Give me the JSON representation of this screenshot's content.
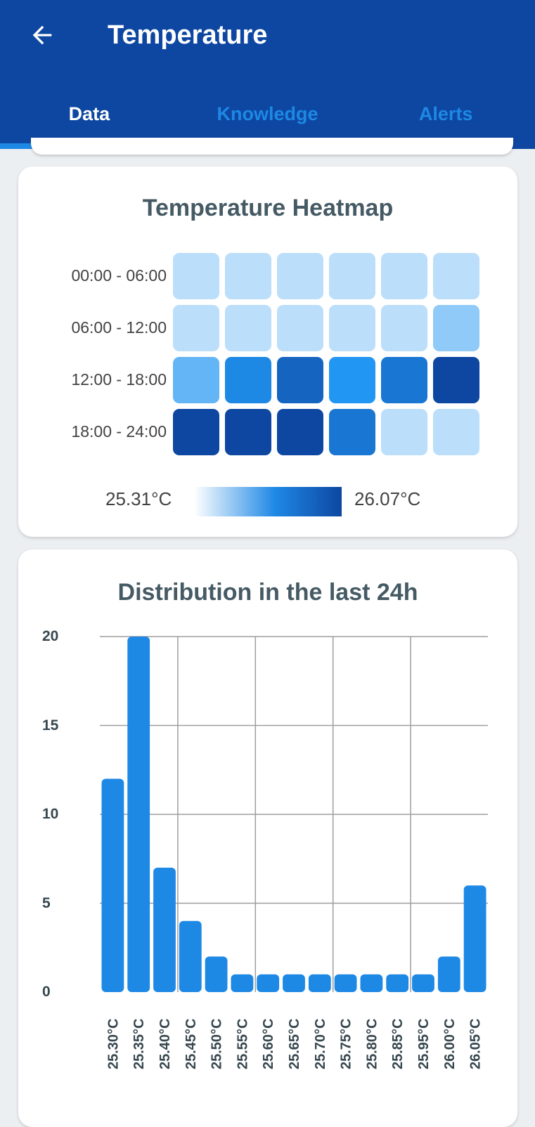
{
  "header": {
    "title": "Temperature",
    "back_icon": "arrow-back-icon"
  },
  "tabs": [
    {
      "label": "Data",
      "active": true
    },
    {
      "label": "Knowledge",
      "active": false
    },
    {
      "label": "Alerts",
      "active": false
    }
  ],
  "heatmap": {
    "title": "Temperature Heatmap",
    "rows": [
      "00:00 - 06:00",
      "06:00 - 12:00",
      "12:00 - 18:00",
      "18:00 - 24:00"
    ],
    "colors": [
      [
        "#bbdefb",
        "#bbdefb",
        "#bbdefb",
        "#bbdefb",
        "#bbdefb",
        "#bbdefb"
      ],
      [
        "#bbdefb",
        "#bbdefb",
        "#bbdefb",
        "#bbdefb",
        "#bbdefb",
        "#90caf9"
      ],
      [
        "#64b5f6",
        "#1e88e5",
        "#1565c0",
        "#2196f3",
        "#1976d2",
        "#0d47a1"
      ],
      [
        "#0d47a1",
        "#0d47a1",
        "#0d47a1",
        "#1976d2",
        "#bbdefb",
        "#bbdefb"
      ]
    ],
    "legend_min": "25.31°C",
    "legend_max": "26.07°C"
  },
  "distribution": {
    "title": "Distribution in the last 24h",
    "bar_color": "#1e88e5"
  },
  "chart_data": {
    "type": "bar",
    "title": "Distribution in the last 24h",
    "categories": [
      "25.30°C",
      "25.35°C",
      "25.40°C",
      "25.45°C",
      "25.50°C",
      "25.55°C",
      "25.60°C",
      "25.65°C",
      "25.70°C",
      "25.75°C",
      "25.80°C",
      "25.85°C",
      "25.95°C",
      "26.00°C",
      "26.05°C"
    ],
    "values": [
      12,
      20,
      7,
      4,
      2,
      1,
      1,
      1,
      1,
      1,
      1,
      1,
      1,
      2,
      6
    ],
    "yticks": [
      "0",
      "5",
      "10",
      "15",
      "20"
    ],
    "ylim": [
      0,
      20
    ],
    "grid": true
  }
}
